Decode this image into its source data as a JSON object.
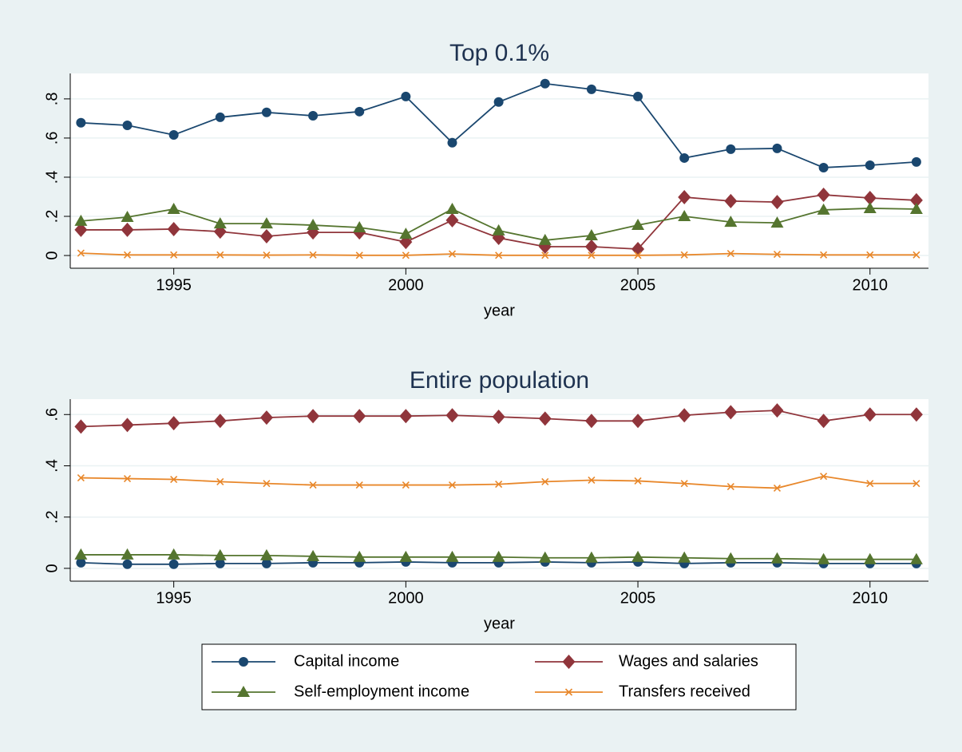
{
  "chart_data": [
    {
      "type": "line",
      "title": "Top 0.1%",
      "xlabel": "year",
      "x": [
        1993,
        1994,
        1995,
        1996,
        1997,
        1998,
        1999,
        2000,
        2001,
        2002,
        2003,
        2004,
        2005,
        2006,
        2007,
        2008,
        2009,
        2010,
        2011
      ],
      "xlim": [
        1992.77,
        2011.26
      ],
      "xticks": [
        1995,
        2000,
        2005,
        2010
      ],
      "ylim": [
        -0.065,
        0.93
      ],
      "yticks": [
        0,
        {
          "value": 0.2,
          "label": ".2"
        },
        {
          "value": 0.4,
          "label": ".4"
        },
        {
          "value": 0.6,
          "label": ".6"
        },
        {
          "value": 0.8,
          "label": ".8"
        }
      ],
      "grid": true,
      "legend": "bottom",
      "series": [
        {
          "name": "Capital income",
          "color": "#1a476f",
          "marker": "circle",
          "values": [
            0.678,
            0.665,
            0.616,
            0.706,
            0.731,
            0.714,
            0.735,
            0.812,
            0.576,
            0.784,
            0.878,
            0.849,
            0.812,
            0.498,
            0.543,
            0.547,
            0.449,
            0.461,
            0.478
          ]
        },
        {
          "name": "Wages and salaries",
          "color": "#90353b",
          "marker": "diamond",
          "values": [
            0.131,
            0.131,
            0.135,
            0.122,
            0.098,
            0.118,
            0.118,
            0.069,
            0.18,
            0.09,
            0.045,
            0.045,
            0.033,
            0.298,
            0.278,
            0.273,
            0.31,
            0.294,
            0.282
          ]
        },
        {
          "name": "Self-employment income",
          "color": "#55752f",
          "marker": "triangle",
          "values": [
            0.176,
            0.196,
            0.237,
            0.163,
            0.163,
            0.155,
            0.143,
            0.11,
            0.237,
            0.127,
            0.078,
            0.102,
            0.155,
            0.2,
            0.171,
            0.167,
            0.233,
            0.241,
            0.237
          ]
        },
        {
          "name": "Transfers received",
          "color": "#e8872a",
          "marker": "x",
          "values": [
            0.012,
            0.003,
            0.003,
            0.003,
            0.002,
            0.003,
            0.001,
            0.001,
            0.008,
            0.001,
            0.001,
            0.001,
            0.001,
            0.003,
            0.01,
            0.006,
            0.003,
            0.003,
            0.003
          ]
        }
      ]
    },
    {
      "type": "line",
      "title": "Entire population",
      "xlabel": "year",
      "x": [
        1993,
        1994,
        1995,
        1996,
        1997,
        1998,
        1999,
        2000,
        2001,
        2002,
        2003,
        2004,
        2005,
        2006,
        2007,
        2008,
        2009,
        2010,
        2011
      ],
      "xlim": [
        1992.77,
        2011.26
      ],
      "xticks": [
        1995,
        2000,
        2005,
        2010
      ],
      "ylim": [
        -0.05,
        0.66
      ],
      "yticks": [
        0,
        {
          "value": 0.2,
          "label": ".2"
        },
        {
          "value": 0.4,
          "label": ".4"
        },
        {
          "value": 0.6,
          "label": ".6"
        }
      ],
      "grid": true,
      "series": [
        {
          "color": "#1a476f",
          "marker": "circle",
          "values": [
            0.022,
            0.016,
            0.016,
            0.019,
            0.019,
            0.022,
            0.022,
            0.025,
            0.022,
            0.022,
            0.025,
            0.022,
            0.025,
            0.019,
            0.022,
            0.022,
            0.019,
            0.019,
            0.019
          ]
        },
        {
          "color": "#90353b",
          "marker": "diamond",
          "values": [
            0.553,
            0.559,
            0.566,
            0.575,
            0.588,
            0.594,
            0.594,
            0.594,
            0.597,
            0.591,
            0.584,
            0.575,
            0.575,
            0.597,
            0.609,
            0.616,
            0.575,
            0.6,
            0.6
          ]
        },
        {
          "color": "#55752f",
          "marker": "triangle",
          "values": [
            0.053,
            0.053,
            0.053,
            0.05,
            0.05,
            0.047,
            0.044,
            0.044,
            0.044,
            0.044,
            0.041,
            0.041,
            0.044,
            0.041,
            0.038,
            0.038,
            0.035,
            0.035,
            0.035
          ]
        },
        {
          "color": "#e8872a",
          "marker": "x",
          "values": [
            0.353,
            0.35,
            0.347,
            0.338,
            0.331,
            0.325,
            0.325,
            0.325,
            0.325,
            0.328,
            0.338,
            0.344,
            0.341,
            0.331,
            0.319,
            0.313,
            0.359,
            0.331,
            0.331
          ]
        }
      ]
    }
  ]
}
